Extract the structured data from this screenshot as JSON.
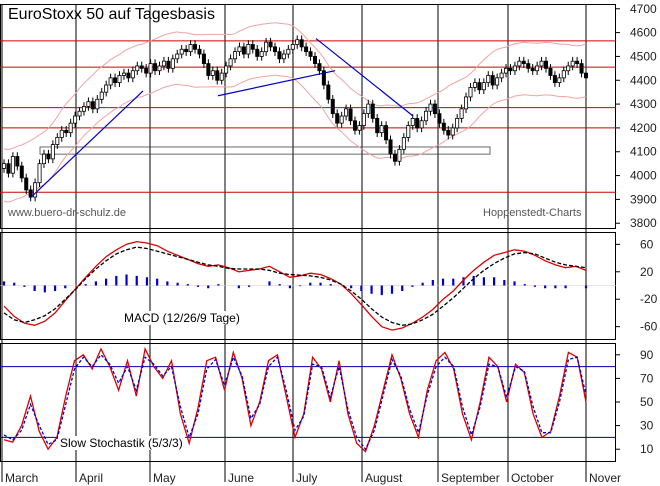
{
  "chart_data": [
    {
      "type": "candlestick",
      "title": "EuroStoxx 50 auf Tagesbasis",
      "site": "www.buero-dr-schulz.de",
      "source": "Hoppenstedt-Charts",
      "y_ticks": [
        3800,
        3900,
        4000,
        4100,
        4200,
        4300,
        4400,
        4500,
        4600,
        4700
      ],
      "ylim": [
        3780,
        4720
      ],
      "horizontal_lines": [
        3930,
        4200,
        4285,
        4455,
        4565
      ],
      "x_labels": [
        "March",
        "April",
        "May",
        "June",
        "July",
        "August",
        "September",
        "October",
        "Nover"
      ],
      "close_values": [
        4050,
        4010,
        4080,
        4040,
        3990,
        3940,
        3910,
        3970,
        4050,
        4090,
        4070,
        4130,
        4160,
        4190,
        4180,
        4220,
        4250,
        4270,
        4290,
        4310,
        4280,
        4320,
        4350,
        4380,
        4410,
        4390,
        4420,
        4430,
        4410,
        4440,
        4460,
        4450,
        4430,
        4470,
        4440,
        4460,
        4480,
        4450,
        4490,
        4510,
        4530,
        4520,
        4550,
        4530,
        4510,
        4470,
        4420,
        4440,
        4400,
        4430,
        4460,
        4490,
        4520,
        4540,
        4510,
        4550,
        4530,
        4500,
        4520,
        4560,
        4540,
        4520,
        4490,
        4510,
        4530,
        4550,
        4570,
        4540,
        4520,
        4500,
        4470,
        4440,
        4380,
        4320,
        4260,
        4220,
        4250,
        4280,
        4230,
        4190,
        4210,
        4260,
        4300,
        4240,
        4180,
        4210,
        4150,
        4090,
        4060,
        4110,
        4160,
        4210,
        4240,
        4200,
        4230,
        4270,
        4300,
        4260,
        4220,
        4190,
        4170,
        4200,
        4240,
        4280,
        4330,
        4370,
        4390,
        4360,
        4390,
        4420,
        4380,
        4410,
        4430,
        4450,
        4440,
        4460,
        4480,
        4470,
        4450,
        4440,
        4460,
        4480,
        4450,
        4420,
        4390,
        4410,
        4440,
        4460,
        4480,
        4470,
        4430,
        4410
      ],
      "trendlines": [
        {
          "x": [
            30,
            143
          ],
          "y": [
            3905,
            4355
          ],
          "color": "#0000cc"
        },
        {
          "x": [
            218,
            335
          ],
          "y": [
            4335,
            4440
          ],
          "color": "#0000cc"
        },
        {
          "x": [
            316,
            413
          ],
          "y": [
            4575,
            4250
          ],
          "color": "#0000cc"
        }
      ],
      "support_box": [
        4090,
        4120
      ]
    },
    {
      "type": "line",
      "title": "MACD (12/26/9 Tage)",
      "y_ticks": [
        60,
        20,
        -20,
        -60
      ],
      "ylim": [
        -78,
        78
      ],
      "series": [
        {
          "values": [
            -30,
            -45,
            -55,
            -58,
            -52,
            -40,
            -22,
            -5,
            12,
            28,
            42,
            52,
            60,
            64,
            62,
            58,
            50,
            44,
            38,
            32,
            28,
            30,
            26,
            20,
            22,
            24,
            28,
            20,
            12,
            14,
            18,
            16,
            10,
            2,
            -12,
            -28,
            -45,
            -60,
            -65,
            -62,
            -55,
            -46,
            -35,
            -20,
            -8,
            8,
            22,
            34,
            44,
            48,
            52,
            50,
            44,
            36,
            30,
            26,
            28,
            22
          ],
          "color": "#dd0000"
        },
        {
          "values": [
            -40,
            -50,
            -54,
            -50,
            -44,
            -34,
            -20,
            -6,
            10,
            24,
            36,
            46,
            52,
            56,
            54,
            50,
            46,
            42,
            38,
            34,
            30,
            28,
            25,
            24,
            24,
            24,
            22,
            18,
            16,
            15,
            14,
            12,
            8,
            2,
            -8,
            -20,
            -34,
            -46,
            -54,
            -58,
            -56,
            -50,
            -42,
            -30,
            -18,
            -4,
            10,
            22,
            32,
            40,
            46,
            48,
            46,
            40,
            34,
            30,
            28,
            26
          ],
          "color": "#000000"
        },
        {
          "values": [
            6,
            4,
            -2,
            -8,
            -10,
            -8,
            -4,
            0,
            2,
            6,
            10,
            14,
            16,
            14,
            12,
            10,
            6,
            4,
            2,
            -2,
            -4,
            2,
            0,
            -4,
            -2,
            0,
            6,
            2,
            -4,
            -1,
            4,
            4,
            2,
            0,
            -4,
            -8,
            -12,
            -14,
            -12,
            -8,
            -2,
            4,
            8,
            10,
            10,
            12,
            14,
            12,
            12,
            8,
            6,
            2,
            -2,
            -4,
            -4,
            -4,
            0,
            -4
          ],
          "color": "#0000cc"
        }
      ]
    },
    {
      "type": "line",
      "title": "Slow Stochastik (5/3/3)",
      "y_ticks": [
        90,
        70,
        50,
        30,
        10
      ],
      "ylim": [
        0,
        100
      ],
      "reference_lines": [
        80,
        20
      ],
      "series": [
        {
          "values": [
            18,
            16,
            30,
            55,
            25,
            10,
            20,
            55,
            85,
            90,
            78,
            95,
            80,
            60,
            85,
            55,
            95,
            80,
            70,
            85,
            40,
            15,
            45,
            85,
            88,
            60,
            92,
            70,
            30,
            50,
            85,
            90,
            55,
            20,
            40,
            88,
            78,
            50,
            85,
            40,
            15,
            8,
            30,
            60,
            90,
            70,
            40,
            20,
            60,
            85,
            92,
            78,
            40,
            18,
            50,
            88,
            80,
            50,
            82,
            75,
            40,
            20,
            25,
            55,
            92,
            88,
            50
          ],
          "color": "#dd0000"
        },
        {
          "values": [
            22,
            18,
            26,
            48,
            30,
            14,
            18,
            48,
            78,
            88,
            80,
            90,
            82,
            66,
            80,
            60,
            88,
            82,
            72,
            80,
            46,
            20,
            40,
            78,
            86,
            64,
            88,
            72,
            36,
            48,
            80,
            88,
            60,
            26,
            38,
            82,
            80,
            54,
            80,
            44,
            20,
            10,
            26,
            56,
            86,
            72,
            44,
            24,
            56,
            80,
            88,
            80,
            46,
            22,
            46,
            82,
            80,
            54,
            80,
            76,
            46,
            24,
            24,
            50,
            86,
            88,
            56
          ],
          "color": "#0000cc"
        }
      ]
    }
  ]
}
